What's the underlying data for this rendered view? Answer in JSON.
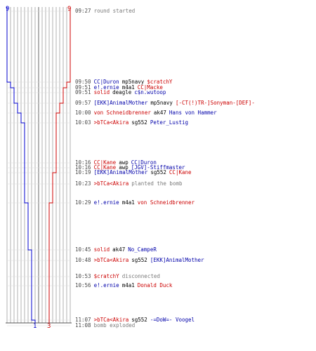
{
  "colors": {
    "team_blue": "#0000cc",
    "team_red": "#cc0000",
    "grid": "#b0b0b0",
    "text": "#000000",
    "info": "#7a7a7a"
  },
  "scores": {
    "blue_start": "9",
    "red_start": "9",
    "blue_end": "1",
    "red_end": "3"
  },
  "events": [
    {
      "time": "09:27",
      "parts": [
        {
          "t": "round started",
          "c": "g"
        }
      ]
    },
    {
      "time": "09:50",
      "parts": [
        {
          "t": "CC|Duron",
          "c": "b"
        },
        {
          "t": "mp5navy",
          "c": "k"
        },
        {
          "t": "$cratchY",
          "c": "r"
        }
      ]
    },
    {
      "time": "09:51",
      "parts": [
        {
          "t": "e!.ernie",
          "c": "b"
        },
        {
          "t": "m4a1",
          "c": "k"
        },
        {
          "t": "CC|Macke",
          "c": "r"
        }
      ]
    },
    {
      "time": "09:51",
      "parts": [
        {
          "t": "solid",
          "c": "r"
        },
        {
          "t": "deagle",
          "c": "k"
        },
        {
          "t": "c$n.wutoop",
          "c": "b"
        }
      ]
    },
    {
      "time": "09:57",
      "parts": [
        {
          "t": "[EKK]AnimalMother",
          "c": "b"
        },
        {
          "t": "mp5navy",
          "c": "k"
        },
        {
          "t": "[-CT(!)TR-]Sonyman-[DEF]-",
          "c": "r"
        }
      ]
    },
    {
      "time": "10:00",
      "parts": [
        {
          "t": "von Schneidbrenner",
          "c": "r"
        },
        {
          "t": "ak47",
          "c": "k"
        },
        {
          "t": "Hans von Hammer",
          "c": "b"
        }
      ]
    },
    {
      "time": "10:03",
      "parts": [
        {
          "t": ">bTCa<Akira",
          "c": "r"
        },
        {
          "t": "sg552",
          "c": "k"
        },
        {
          "t": "Peter_Lustig",
          "c": "b"
        }
      ]
    },
    {
      "time": "10:16",
      "parts": [
        {
          "t": "CC|Kane",
          "c": "r"
        },
        {
          "t": "awp",
          "c": "k"
        },
        {
          "t": "CC|Duron",
          "c": "b"
        }
      ]
    },
    {
      "time": "10:16",
      "parts": [
        {
          "t": "CC|Kane",
          "c": "r"
        },
        {
          "t": "awp",
          "c": "k"
        },
        {
          "t": "[JGV]-Stiffmaster",
          "c": "b"
        }
      ]
    },
    {
      "time": "10:19",
      "parts": [
        {
          "t": "[EKK]AnimalMother",
          "c": "b"
        },
        {
          "t": "sg552",
          "c": "k"
        },
        {
          "t": "CC|Kane",
          "c": "r"
        }
      ]
    },
    {
      "time": "10:23",
      "parts": [
        {
          "t": ">bTCa<Akira",
          "c": "r"
        },
        {
          "t": "planted the bomb",
          "c": "g"
        }
      ]
    },
    {
      "time": "10:29",
      "parts": [
        {
          "t": "e!.ernie",
          "c": "b"
        },
        {
          "t": "m4a1",
          "c": "k"
        },
        {
          "t": "von Schneidbrenner",
          "c": "r"
        }
      ]
    },
    {
      "time": "10:45",
      "parts": [
        {
          "t": "solid",
          "c": "r"
        },
        {
          "t": "ak47",
          "c": "k"
        },
        {
          "t": "No_CampeR",
          "c": "b"
        }
      ]
    },
    {
      "time": "10:48",
      "parts": [
        {
          "t": ">bTCa<Akira",
          "c": "r"
        },
        {
          "t": "sg552",
          "c": "k"
        },
        {
          "t": "[EKK]AnimalMother",
          "c": "b"
        }
      ]
    },
    {
      "time": "10:53",
      "parts": [
        {
          "t": "$cratchY",
          "c": "r"
        },
        {
          "t": "disconnected",
          "c": "g"
        }
      ]
    },
    {
      "time": "10:56",
      "parts": [
        {
          "t": "e!.ernie",
          "c": "b"
        },
        {
          "t": "m4a1",
          "c": "k"
        },
        {
          "t": "Donald Duck",
          "c": "r"
        }
      ]
    },
    {
      "time": "11:07",
      "parts": [
        {
          "t": ">bTCa<Akira",
          "c": "r"
        },
        {
          "t": "sg552",
          "c": "k"
        },
        {
          "t": "-=DoW=- Voogel",
          "c": "b"
        }
      ]
    },
    {
      "time": "11:08",
      "parts": [
        {
          "t": "bomb exploded",
          "c": "g"
        }
      ]
    }
  ]
}
